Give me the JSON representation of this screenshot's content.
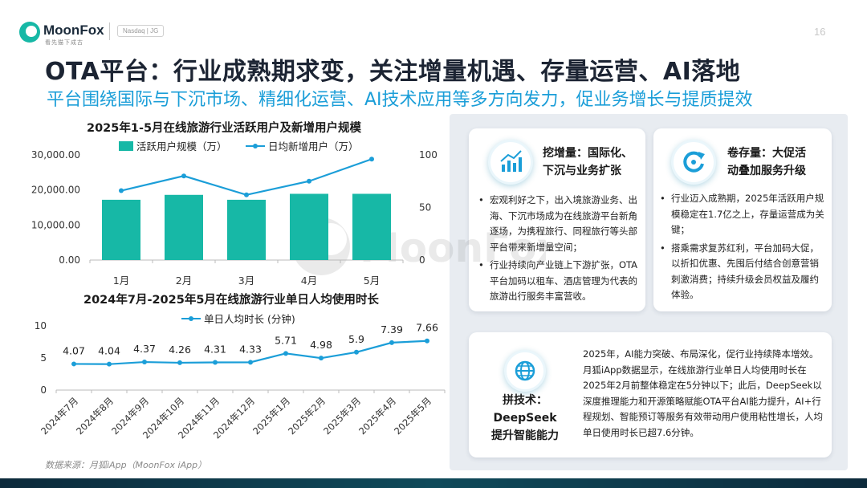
{
  "header": {
    "logo": "MoonFox",
    "logo_sub": "看先猫下成古",
    "badge": "Nasdaq | JG",
    "page_number": "16"
  },
  "title": "OTA平台：行业成熟期求变，关注增量机遇、存量运营、AI落地",
  "subtitle": "平台围绕国际与下沉市场、精细化运营、AI技术应用等多方向发力，促业务增长与提质提效",
  "watermark": "MoonFox",
  "colors": {
    "accent": "#1b9ed8",
    "bar": "#17b8a6",
    "line": "#1b9ed8",
    "title": "#1c2433"
  },
  "chart_data": [
    {
      "type": "bar",
      "title": "2025年1-5月在线旅游行业活跃用户及新增用户规模",
      "categories": [
        "1月",
        "2月",
        "3月",
        "4月",
        "5月"
      ],
      "series": [
        {
          "name": "活跃用户规模（万）",
          "type": "bar",
          "axis": "left",
          "values": [
            17200,
            18600,
            17200,
            18900,
            18900
          ]
        },
        {
          "name": "日均新增用户（万）",
          "type": "line",
          "axis": "right",
          "values": [
            66,
            80,
            62,
            75,
            96
          ]
        }
      ],
      "y_left": {
        "min": 0,
        "max": 30000,
        "ticks": [
          "0.00",
          "10,000.00",
          "20,000.00",
          "30,000.00"
        ]
      },
      "y_right": {
        "min": 0,
        "max": 100,
        "ticks": [
          "0",
          "50",
          "100"
        ]
      },
      "legend": "top",
      "grid": false
    },
    {
      "type": "line",
      "title": "2024年7月-2025年5月在线旅游行业单日人均使用时长",
      "categories": [
        "2024年7月",
        "2024年8月",
        "2024年9月",
        "2024年10月",
        "2024年11月",
        "2024年12月",
        "2025年1月",
        "2025年2月",
        "2025年3月",
        "2025年4月",
        "2025年5月"
      ],
      "series": [
        {
          "name": "单日人均时长 (分钟)",
          "values": [
            4.07,
            4.04,
            4.37,
            4.26,
            4.31,
            4.33,
            5.71,
            4.98,
            5.9,
            7.39,
            7.66
          ]
        }
      ],
      "data_labels": [
        "4.07",
        "4.04",
        "4.37",
        "4.26",
        "4.31",
        "4.33",
        "5.71",
        "4.98",
        "5.9",
        "7.39",
        "7.66"
      ],
      "y": {
        "min": 0,
        "max": 10,
        "ticks": [
          "0",
          "5",
          "10"
        ]
      },
      "legend": "top",
      "grid": false
    }
  ],
  "cards": {
    "increment": {
      "icon": "bar-chart-icon",
      "head": [
        "挖增量：国际化、",
        "下沉与业务扩张"
      ],
      "bullets": [
        "宏观利好之下，出入境旅游业务、出海、下沉市场成为在线旅游平台新角逐场，为携程旅行、同程旅行等头部平台带来新增量空间；",
        "行业持续向产业链上下游扩张，OTA平台加码以租车、酒店管理为代表的旅游出行服务丰富营收。"
      ]
    },
    "stock": {
      "icon": "refresh-cycle-icon",
      "head": [
        "卷存量：大促活",
        "动叠加服务升级"
      ],
      "bullets": [
        "行业迈入成熟期，2025年活跃用户规模稳定在1.7亿之上，存量运营成为关键；",
        "搭乘需求复苏红利，平台加码大促，以折扣优惠、先囤后付结合创意营销刺激消费；持续升级会员权益及履约体验。"
      ]
    },
    "tech": {
      "icon": "globe-icon",
      "head": [
        "拼技术：",
        "DeepSeek",
        "提升智能能力"
      ],
      "paragraph": "2025年，AI能力突破、布局深化，促行业持续降本增效。月狐iApp数据显示，在线旅游行业单日人均使用时长在2025年2月前整体稳定在5分钟以下；此后，DeepSeek以深度推理能力和开源策略赋能OTA平台AI能力提升，AI+行程规划、智能预订等服务有效带动用户使用粘性增长，人均单日使用时长已超7.6分钟。"
    }
  },
  "source": "数据来源：月狐iApp（MoonFox iApp）"
}
